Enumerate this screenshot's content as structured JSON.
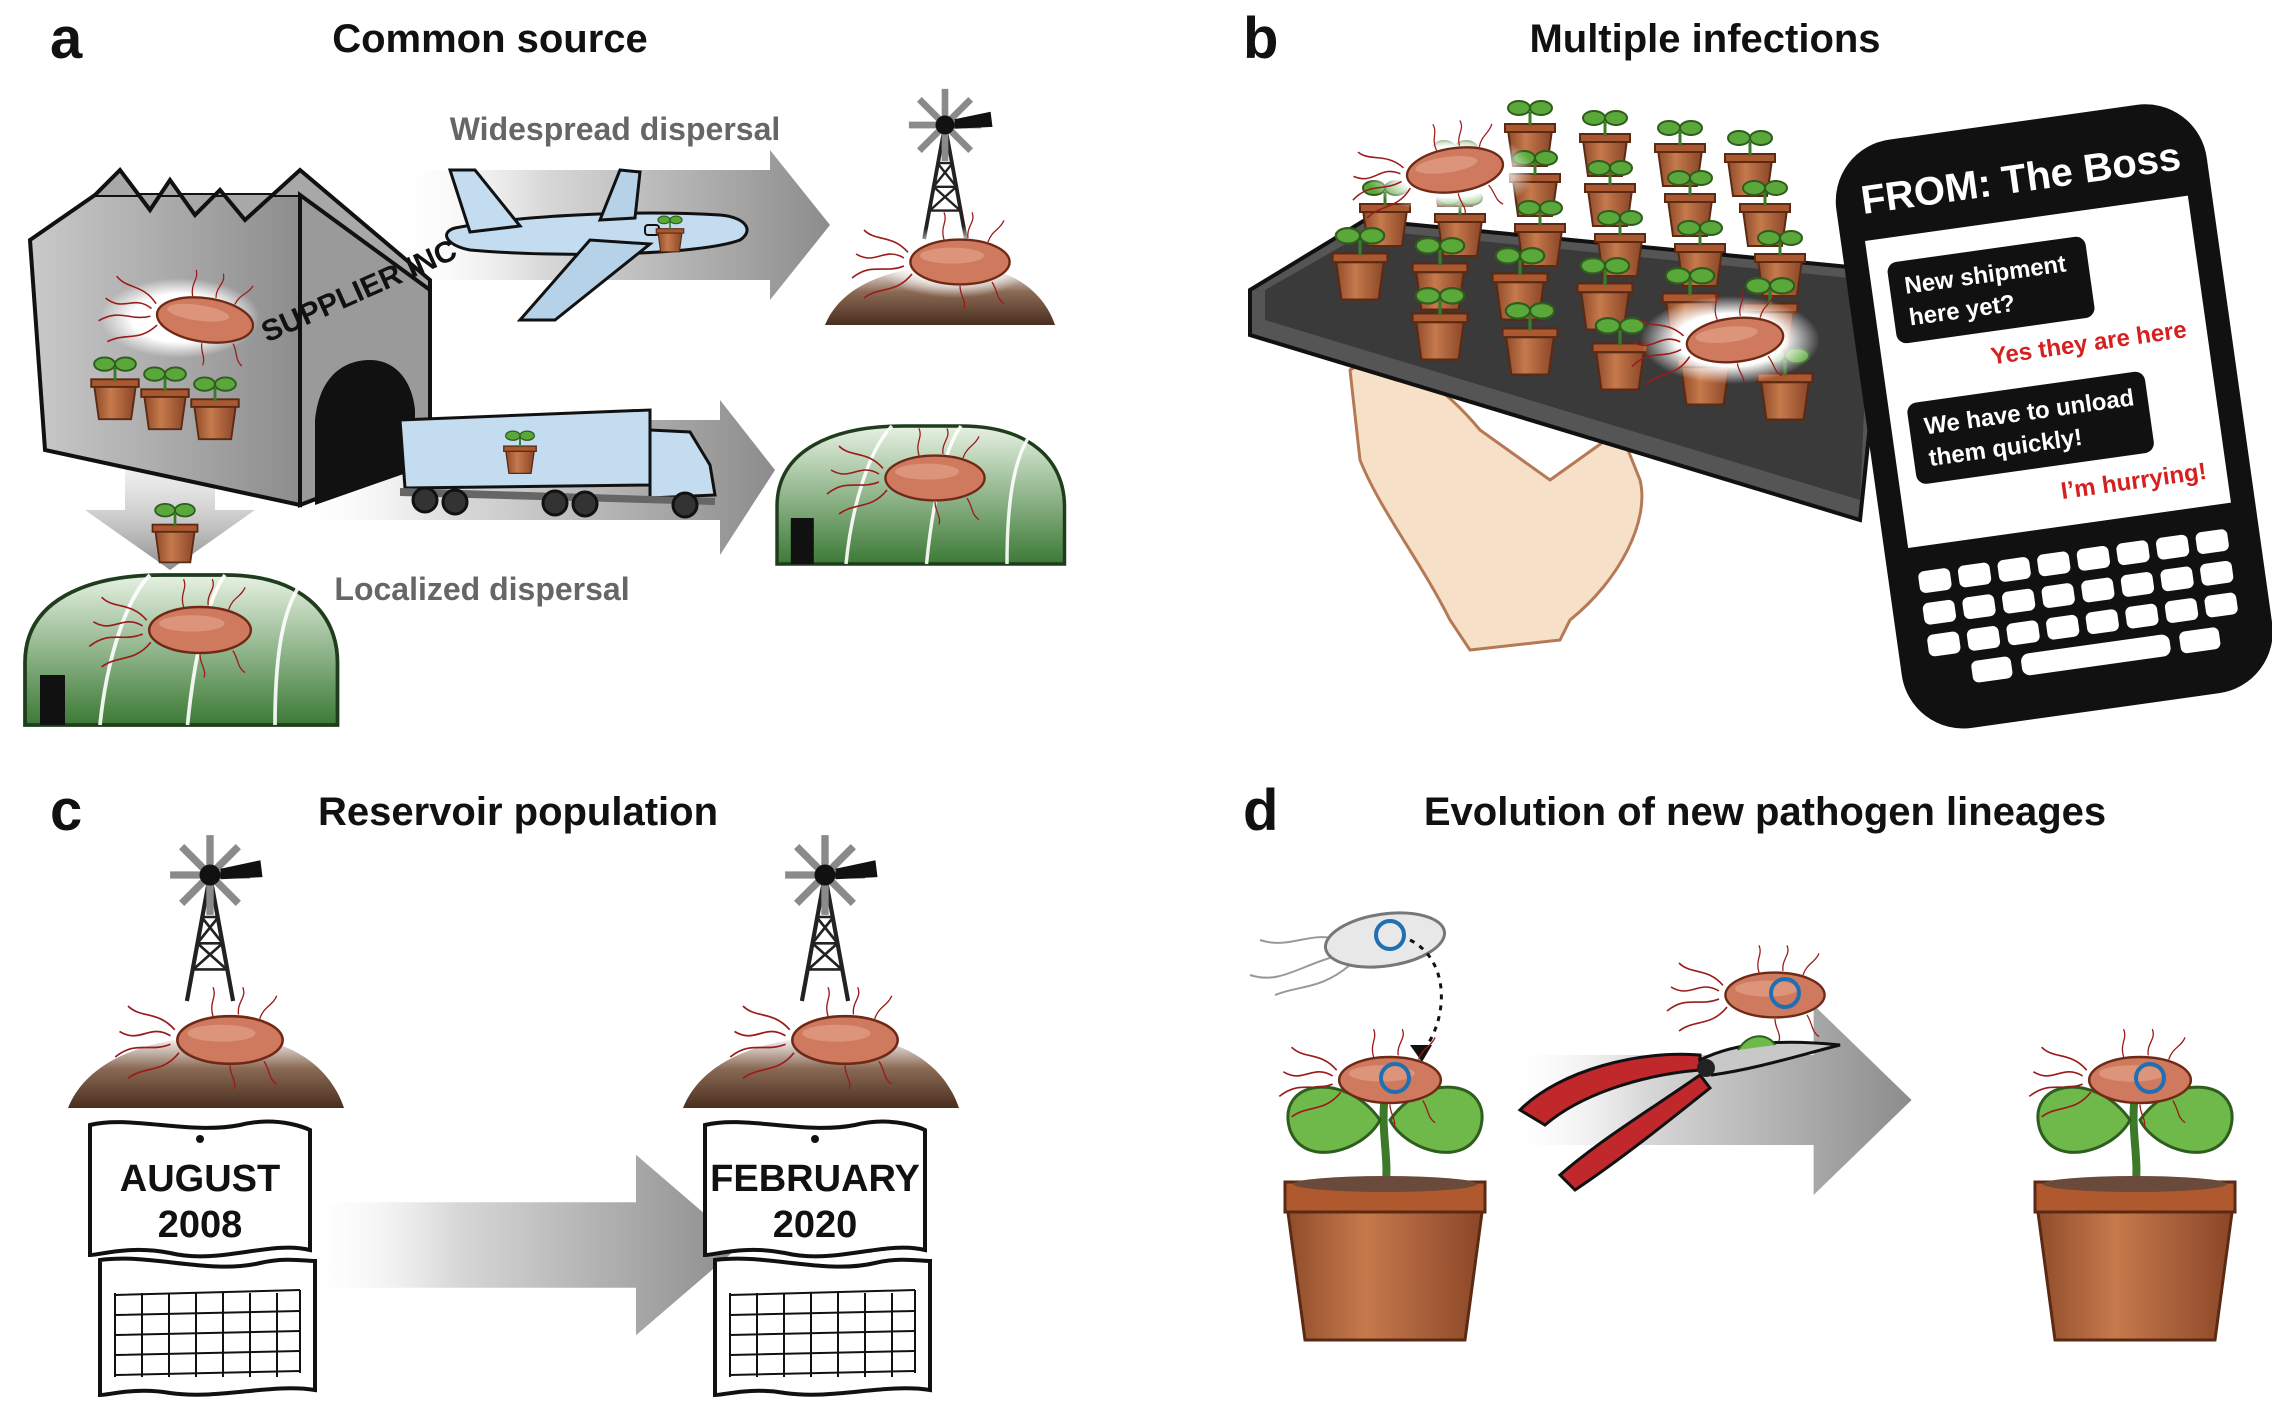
{
  "panels": {
    "a": {
      "letter": "a",
      "title": "Common source",
      "widespread": "Widespread dispersal",
      "localized": "Localized dispersal",
      "factory_sign": "SUPPLIER INC"
    },
    "b": {
      "letter": "b",
      "title": "Multiple infections",
      "phone": {
        "header": "FROM: The Boss",
        "msg1": [
          "New shipment",
          "here yet?"
        ],
        "reply1": "Yes they are here",
        "msg2": [
          "We have to unload",
          "them quickly!"
        ],
        "reply2": "I’m hurrying!"
      }
    },
    "c": {
      "letter": "c",
      "title": "Reservoir population",
      "cal1": {
        "month": "AUGUST",
        "year": "2008"
      },
      "cal2": {
        "month": "FEBRUARY",
        "year": "2020"
      }
    },
    "d": {
      "letter": "d",
      "title": "Evolution of new pathogen lineages"
    }
  },
  "colors": {
    "bacterium_fill": "#cf7a5e",
    "bacterium_stroke": "#8a3a22",
    "flagella": "#9b1b1b",
    "reply_red": "#d42020",
    "pot": "#b5643a",
    "leaf": "#5aa83a",
    "greenhouse": "#3f7d3a",
    "outline_blue": "#1f6fb3"
  }
}
